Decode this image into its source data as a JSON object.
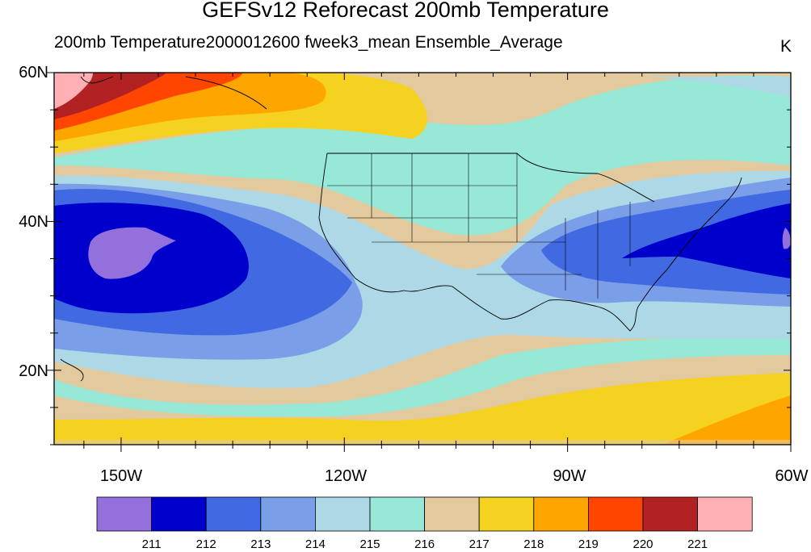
{
  "title": "GEFSv12 Reforecast 200mb Temperature",
  "subtitle": "200mb Temperature2000012600 fweek3_mean Ensemble_Average",
  "units": "K",
  "lat_labels": [
    "60N",
    "40N",
    "20N"
  ],
  "lon_labels": [
    "150W",
    "120W",
    "90W",
    "60W"
  ],
  "colorbar": {
    "levels": [
      "211",
      "212",
      "213",
      "214",
      "215",
      "216",
      "217",
      "218",
      "219",
      "220",
      "221"
    ],
    "colors": [
      "#9370db",
      "#0000cd",
      "#4169e1",
      "#7b9ee8",
      "#add8e6",
      "#98e8d8",
      "#e2c99e",
      "#f5d21f",
      "#ffa500",
      "#ff4500",
      "#b22222",
      "#ffb0b5"
    ]
  },
  "map_extent": {
    "lon_min": -159,
    "lon_max": -60,
    "lat_min": 10,
    "lat_max": 60
  }
}
